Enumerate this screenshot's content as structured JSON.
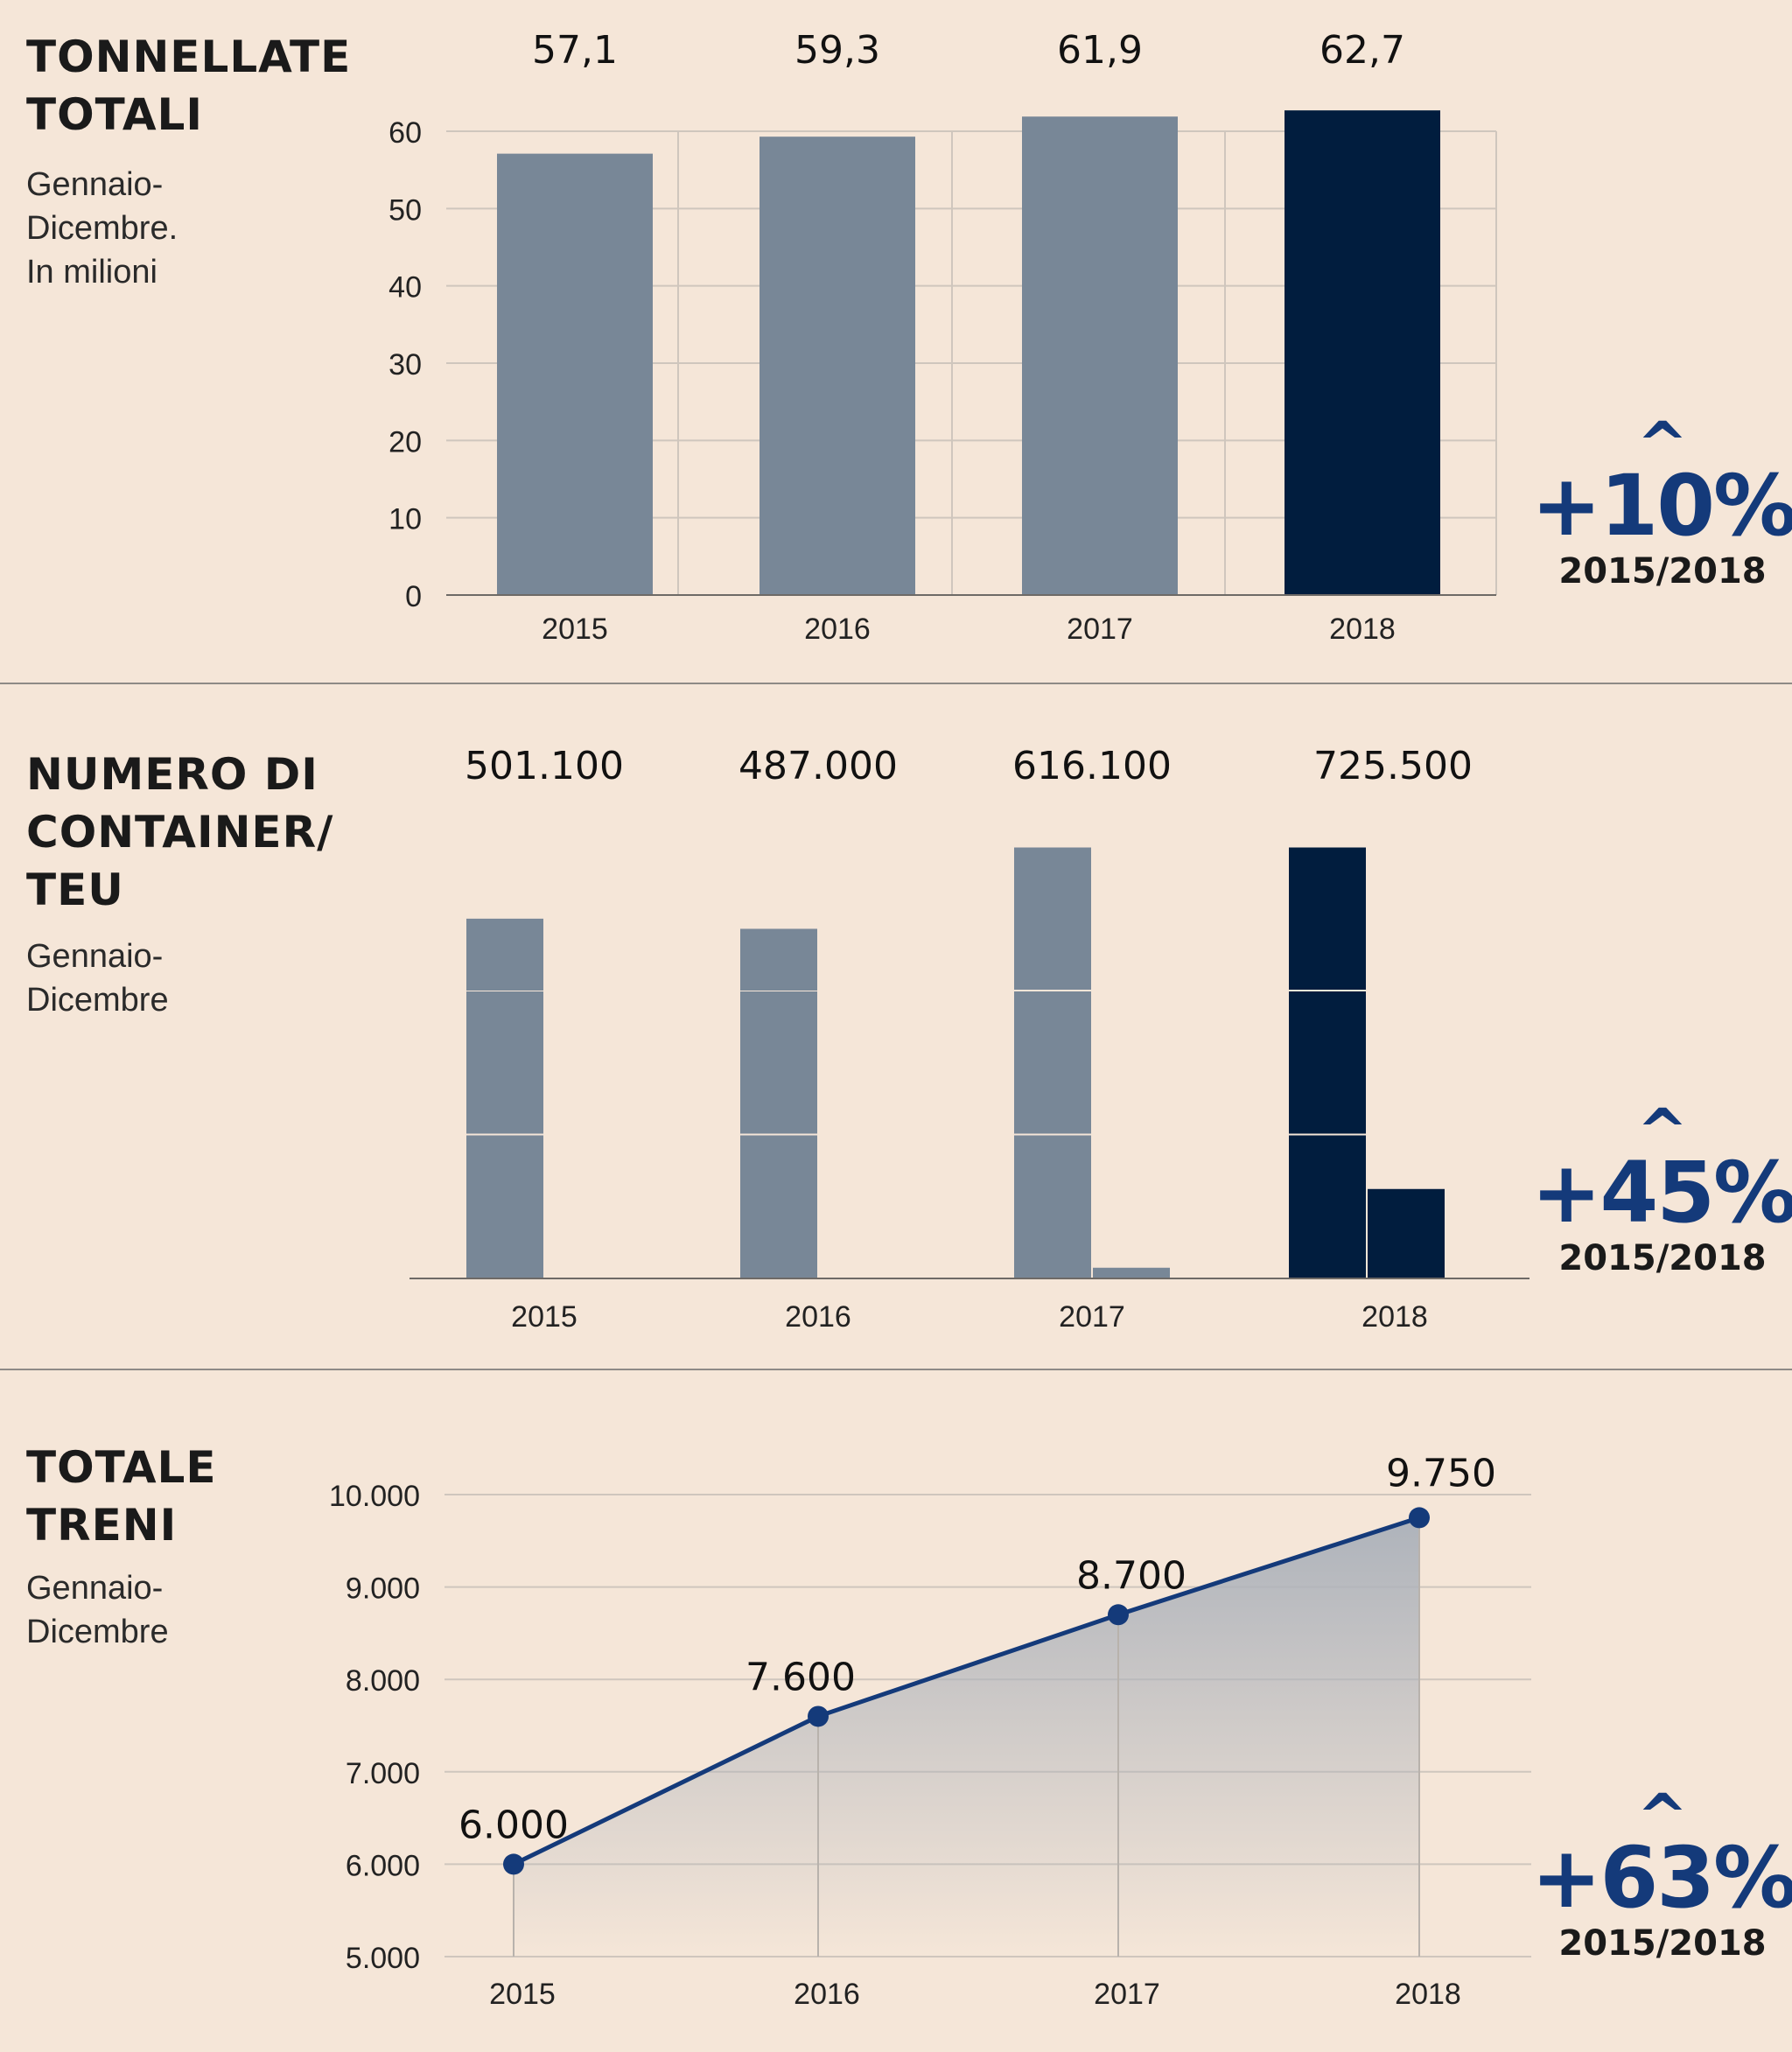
{
  "colors": {
    "background": "#f5e6d8",
    "bar_default": "#788797",
    "bar_highlight": "#011d3e",
    "accent": "#143a7a",
    "grid": "#cfc6bd"
  },
  "panels": [
    {
      "title_lines": [
        "TONNELLATE",
        "TOTALI"
      ],
      "subtitle_lines": [
        "Gennaio-",
        "Dicembre.",
        "In milioni"
      ],
      "growth": {
        "value": "+10%",
        "period": "2015/2018"
      }
    },
    {
      "title_lines": [
        "NUMERO DI",
        "CONTAINER/",
        "TEU"
      ],
      "subtitle_lines": [
        "Gennaio-",
        "Dicembre"
      ],
      "growth": {
        "value": "+45%",
        "period": "2015/2018"
      }
    },
    {
      "title_lines": [
        "TOTALE",
        "TRENI"
      ],
      "subtitle_lines": [
        "Gennaio-",
        "Dicembre"
      ],
      "growth": {
        "value": "+63%",
        "period": "2015/2018"
      }
    }
  ],
  "chart_data": [
    {
      "type": "bar",
      "title": "TONNELLATE TOTALI",
      "subtitle": "Gennaio-Dicembre. In milioni",
      "categories": [
        "2015",
        "2016",
        "2017",
        "2018"
      ],
      "values": [
        57.1,
        59.3,
        61.9,
        62.7
      ],
      "value_labels": [
        "57,1",
        "59,3",
        "61,9",
        "62,7"
      ],
      "ylim": [
        0,
        60
      ],
      "yticks": [
        0,
        10,
        20,
        30,
        40,
        50,
        60
      ],
      "ytick_labels": [
        "0",
        "10",
        "20",
        "30",
        "40",
        "50",
        "60"
      ],
      "highlight_index": 3,
      "grid": true,
      "legend": "none"
    },
    {
      "type": "bar",
      "title": "NUMERO DI CONTAINER/TEU",
      "subtitle": "Gennaio-Dicembre",
      "categories": [
        "2015",
        "2016",
        "2017",
        "2018"
      ],
      "values": [
        501100,
        487000,
        616100,
        725500
      ],
      "value_labels": [
        "501.100",
        "487.000",
        "616.100",
        "725.500"
      ],
      "highlight_index": 3,
      "grid": false,
      "legend": "none"
    },
    {
      "type": "area",
      "title": "TOTALE TRENI",
      "subtitle": "Gennaio-Dicembre",
      "categories": [
        "2015",
        "2016",
        "2017",
        "2018"
      ],
      "values": [
        6000,
        7600,
        8700,
        9750
      ],
      "value_labels": [
        "6.000",
        "7.600",
        "8.700",
        "9.750"
      ],
      "ylim": [
        5000,
        10000
      ],
      "yticks": [
        5000,
        6000,
        7000,
        8000,
        9000,
        10000
      ],
      "ytick_labels": [
        "5.000",
        "6.000",
        "7.000",
        "8.000",
        "9.000",
        "10.000"
      ],
      "grid": true,
      "legend": "none"
    }
  ]
}
